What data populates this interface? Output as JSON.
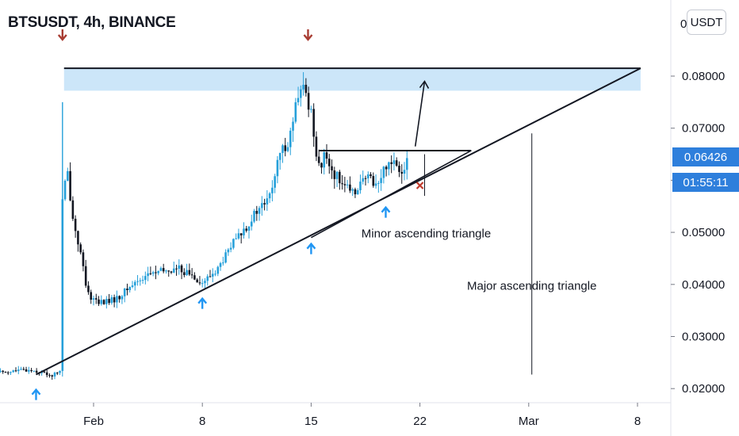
{
  "header": {
    "title": "BTSUSDT, 4h, BINANCE",
    "currency": "USDT"
  },
  "price_scale": {
    "last_price": "0.06426",
    "countdown": "01:55:11",
    "clipped_label": "0"
  },
  "colors": {
    "up_candle": "#26a0da",
    "down_candle": "#131722",
    "resistance_zone": "#bfe0f8",
    "support_arrow": "#2196f3",
    "resistance_arrow": "#a83c32",
    "invalid_marker": "#c0392b",
    "price_tag": "#2e7fdc"
  },
  "annotations": {
    "minor": "Minor ascending triangle",
    "major": "Major ascending triangle"
  },
  "chart_data": {
    "type": "candlestick",
    "title": "BTSUSDT, 4h, BINANCE",
    "y_range": [
      0.018,
      0.095
    ],
    "y_ticks": [
      "0.08000",
      "0.07000",
      "0.06000",
      "0.05000",
      "0.04000",
      "0.03000",
      "0.02000"
    ],
    "x_ticks": [
      "Feb",
      "8",
      "15",
      "22",
      "Mar",
      "8"
    ],
    "x_tick_days": [
      0,
      7,
      14,
      21,
      28,
      35
    ],
    "x_range_days": [
      -6.0,
      36.5
    ],
    "grid": false,
    "last_price": 0.06426,
    "price_path": [
      [
        -6.0,
        0.0232
      ],
      [
        -4.0,
        0.0236
      ],
      [
        -3.0,
        0.0228
      ],
      [
        -2.6,
        0.0225
      ],
      [
        -2.2,
        0.0235
      ],
      [
        -2.05,
        0.0232
      ],
      [
        -2.0,
        0.056
      ],
      [
        -1.7,
        0.062
      ],
      [
        -1.3,
        0.052
      ],
      [
        -0.9,
        0.047
      ],
      [
        -0.4,
        0.038
      ],
      [
        0.5,
        0.0365
      ],
      [
        1.5,
        0.0372
      ],
      [
        2.5,
        0.04
      ],
      [
        3.5,
        0.042
      ],
      [
        4.5,
        0.0425
      ],
      [
        5.5,
        0.043
      ],
      [
        6.5,
        0.0415
      ],
      [
        7.0,
        0.0402
      ],
      [
        8.0,
        0.043
      ],
      [
        9.0,
        0.048
      ],
      [
        9.8,
        0.051
      ],
      [
        10.5,
        0.054
      ],
      [
        11.3,
        0.0565
      ],
      [
        12.0,
        0.065
      ],
      [
        12.6,
        0.068
      ],
      [
        13.0,
        0.074
      ],
      [
        13.5,
        0.078
      ],
      [
        14.0,
        0.073
      ],
      [
        14.3,
        0.066
      ],
      [
        14.6,
        0.062
      ],
      [
        14.9,
        0.065
      ],
      [
        15.5,
        0.061
      ],
      [
        16.0,
        0.06
      ],
      [
        16.6,
        0.057
      ],
      [
        17.1,
        0.0595
      ],
      [
        17.8,
        0.0605
      ],
      [
        18.3,
        0.059
      ],
      [
        18.8,
        0.063
      ],
      [
        19.3,
        0.064
      ],
      [
        19.8,
        0.062
      ],
      [
        20.3,
        0.06426
      ]
    ],
    "resistance_zone": {
      "from_day": -1.9,
      "to_day": 35.2,
      "top": 0.0815,
      "bottom": 0.0772
    },
    "major_triangle": {
      "resistance": [
        [
          -1.9,
          0.0815
        ],
        [
          35.2,
          0.0815
        ]
      ],
      "support": [
        [
          -3.7,
          0.0227
        ],
        [
          35.2,
          0.0815
        ]
      ],
      "height_marker": [
        [
          28.2,
          0.0227
        ],
        [
          28.2,
          0.069
        ]
      ]
    },
    "minor_triangle": {
      "resistance": [
        [
          14.5,
          0.0657
        ],
        [
          24.3,
          0.0657
        ]
      ],
      "support": [
        [
          14.0,
          0.049
        ],
        [
          24.3,
          0.0657
        ]
      ],
      "height_marker": [
        [
          21.3,
          0.065
        ],
        [
          21.3,
          0.057
        ]
      ],
      "breakout_arrow": [
        [
          20.7,
          0.0665
        ],
        [
          21.3,
          0.079
        ]
      ]
    },
    "support_touches": [
      [
        -3.7,
        0.021
      ],
      [
        7.0,
        0.0385
      ],
      [
        14.0,
        0.049
      ],
      [
        18.8,
        0.056
      ]
    ],
    "resistance_touches": [
      [
        -2.0,
        0.087
      ],
      [
        13.8,
        0.087
      ]
    ],
    "invalidation_marker": [
      21.0,
      0.059
    ]
  }
}
